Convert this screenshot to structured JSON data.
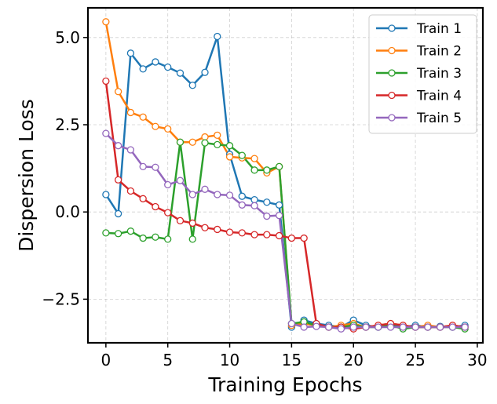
{
  "chart_data": {
    "type": "line",
    "xlabel": "Training Epochs",
    "ylabel": "Dispersion Loss",
    "xlim": [
      -1.45,
      30.45
    ],
    "ylim": [
      -3.75,
      5.85
    ],
    "xticks": [
      0,
      5,
      10,
      15,
      20,
      25,
      30
    ],
    "xtick_labels": [
      "0",
      "5",
      "10",
      "15",
      "20",
      "25",
      "30"
    ],
    "yticks": [
      -2.5,
      0,
      2.5,
      5
    ],
    "ytick_labels": [
      "−2.5",
      "0.0",
      "2.5",
      "5.0"
    ],
    "grid": true,
    "grid_style": "dashed",
    "legend_position": "top-right",
    "marker": "hollow-circle",
    "x": [
      0,
      1,
      2,
      3,
      4,
      5,
      6,
      7,
      8,
      9,
      10,
      11,
      12,
      13,
      14,
      15,
      16,
      17,
      18,
      19,
      20,
      21,
      22,
      23,
      24,
      25,
      26,
      27,
      28,
      29
    ],
    "series": [
      {
        "name": "Train 1",
        "color": "#1f77b4",
        "values": [
          0.5,
          -0.05,
          4.55,
          4.1,
          4.3,
          4.15,
          3.98,
          3.63,
          4.0,
          5.03,
          1.65,
          0.45,
          0.35,
          0.28,
          0.2,
          -3.3,
          -3.1,
          -3.2,
          -3.25,
          -3.3,
          -3.1,
          -3.25,
          -3.3,
          -3.25,
          -3.3,
          -3.25,
          -3.3,
          -3.28,
          -3.3,
          -3.25
        ]
      },
      {
        "name": "Train 2",
        "color": "#ff7f0e",
        "values": [
          5.45,
          3.45,
          2.85,
          2.72,
          2.45,
          2.38,
          2.0,
          2.0,
          2.15,
          2.2,
          1.58,
          1.55,
          1.53,
          1.12,
          1.3,
          -3.25,
          -3.2,
          -3.25,
          -3.3,
          -3.25,
          -3.2,
          -3.3,
          -3.25,
          -3.2,
          -3.25,
          -3.3,
          -3.25,
          -3.3,
          -3.25,
          -3.3
        ]
      },
      {
        "name": "Train 3",
        "color": "#2ca02c",
        "values": [
          -0.6,
          -0.62,
          -0.55,
          -0.75,
          -0.72,
          -0.78,
          2.0,
          -0.78,
          1.98,
          1.93,
          1.9,
          1.62,
          1.2,
          1.2,
          1.3,
          -3.2,
          -3.15,
          -3.25,
          -3.3,
          -3.3,
          -3.25,
          -3.3,
          -3.3,
          -3.25,
          -3.35,
          -3.3,
          -3.3,
          -3.3,
          -3.3,
          -3.35
        ]
      },
      {
        "name": "Train 4",
        "color": "#d62728",
        "values": [
          3.75,
          0.92,
          0.6,
          0.38,
          0.15,
          -0.02,
          -0.25,
          -0.32,
          -0.45,
          -0.5,
          -0.58,
          -0.6,
          -0.65,
          -0.65,
          -0.68,
          -0.75,
          -0.75,
          -3.2,
          -3.3,
          -3.3,
          -3.35,
          -3.3,
          -3.25,
          -3.2,
          -3.25,
          -3.3,
          -3.3,
          -3.3,
          -3.25,
          -3.3
        ]
      },
      {
        "name": "Train 5",
        "color": "#9467bd",
        "values": [
          2.25,
          1.9,
          1.78,
          1.3,
          1.28,
          0.78,
          0.9,
          0.5,
          0.65,
          0.5,
          0.48,
          0.2,
          0.18,
          -0.12,
          -0.1,
          -3.2,
          -3.3,
          -3.28,
          -3.3,
          -3.35,
          -3.3,
          -3.3,
          -3.3,
          -3.3,
          -3.3,
          -3.3,
          -3.3,
          -3.3,
          -3.3,
          -3.3
        ]
      }
    ]
  }
}
